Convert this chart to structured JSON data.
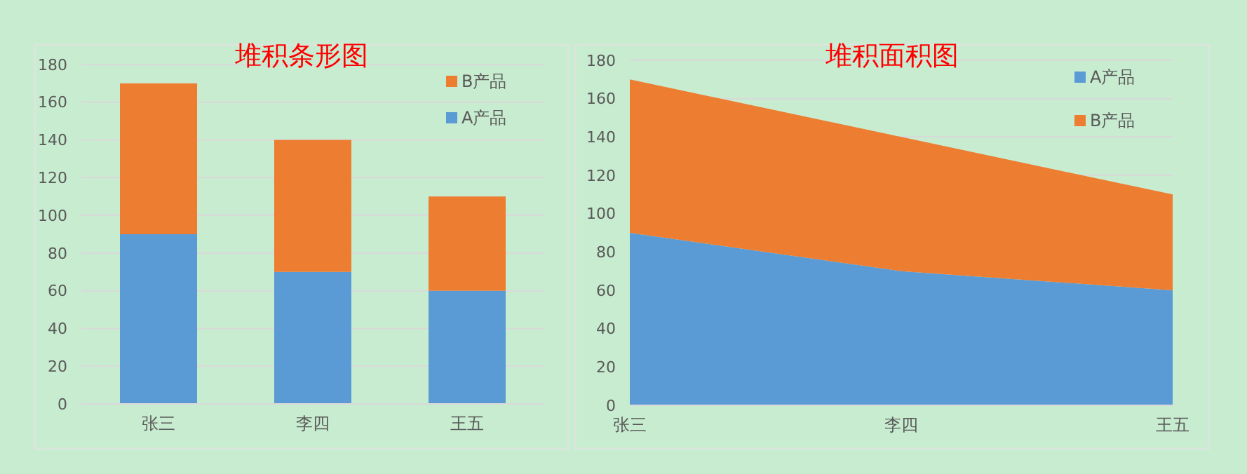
{
  "chart_data": [
    {
      "type": "bar",
      "stacked": true,
      "title": "堆积条形图",
      "categories": [
        "张三",
        "李四",
        "王五"
      ],
      "series": [
        {
          "name": "A产品",
          "color": "#5b9bd5",
          "values": [
            90,
            70,
            60
          ]
        },
        {
          "name": "B产品",
          "color": "#ed7d31",
          "values": [
            80,
            70,
            50
          ]
        }
      ],
      "ylim": [
        0,
        180
      ],
      "yticks": [
        0,
        20,
        40,
        60,
        80,
        100,
        120,
        140,
        160,
        180
      ],
      "grid": "y",
      "legend": "top right"
    },
    {
      "type": "area",
      "stacked": true,
      "title": "堆积面积图",
      "categories": [
        "张三",
        "李四",
        "王五"
      ],
      "series": [
        {
          "name": "A产品",
          "color": "#5b9bd5",
          "values": [
            90,
            70,
            60
          ]
        },
        {
          "name": "B产品",
          "color": "#ed7d31",
          "values": [
            80,
            70,
            50
          ]
        }
      ],
      "ylim": [
        0,
        180
      ],
      "yticks": [
        0,
        20,
        40,
        60,
        80,
        100,
        120,
        140,
        160,
        180
      ],
      "grid": "y",
      "legend": "top right"
    }
  ]
}
